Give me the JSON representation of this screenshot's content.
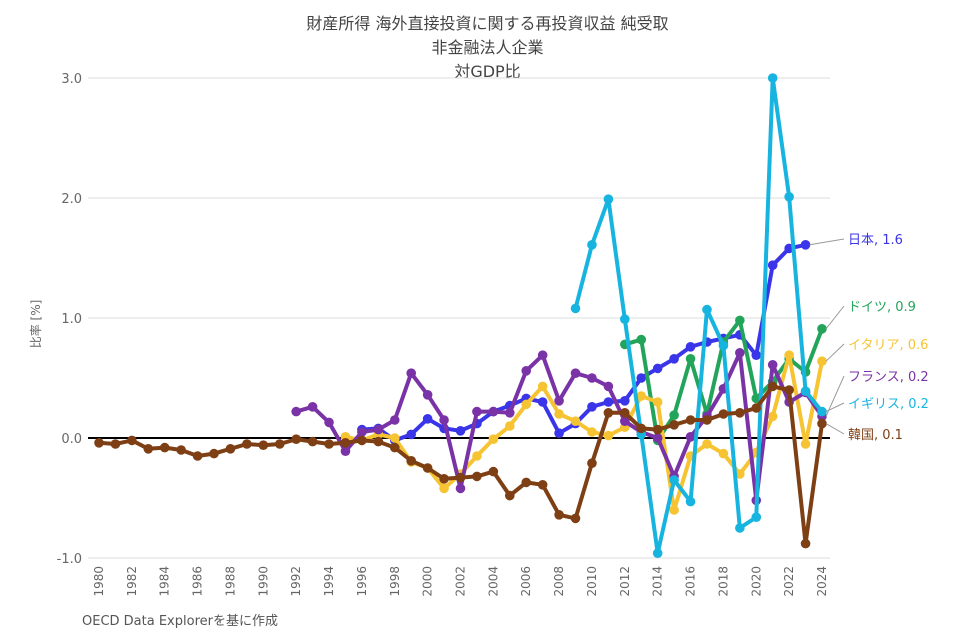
{
  "chart_data": {
    "type": "line",
    "title": [
      "財産所得 海外直接投資に関する再投資収益 純受取",
      "非金融法人企業",
      "対GDP比"
    ],
    "ylabel": "比率 [%]",
    "xlabel": "",
    "ylim": [
      -1.0,
      3.0
    ],
    "yticks": [
      "-1.0",
      "0.0",
      "1.0",
      "2.0",
      "3.0"
    ],
    "xlim": [
      1980,
      2024
    ],
    "xticks": [
      "1980",
      "1982",
      "1984",
      "1986",
      "1988",
      "1990",
      "1992",
      "1994",
      "1996",
      "1998",
      "2000",
      "2002",
      "2004",
      "2006",
      "2008",
      "2010",
      "2012",
      "2014",
      "2016",
      "2018",
      "2020",
      "2022",
      "2024"
    ],
    "grid": true,
    "source": "OECD Data Explorerを基に作成",
    "series": [
      {
        "name": "日本",
        "label": "日本, 1.6",
        "color": "#3a35e8",
        "x": [
          1996,
          1997,
          1998,
          1999,
          2000,
          2001,
          2002,
          2003,
          2004,
          2005,
          2006,
          2007,
          2008,
          2009,
          2010,
          2011,
          2012,
          2013,
          2014,
          2015,
          2016,
          2017,
          2018,
          2019,
          2020,
          2021,
          2022,
          2023
        ],
        "y": [
          0.07,
          0.08,
          -0.02,
          0.03,
          0.16,
          0.08,
          0.06,
          0.12,
          0.22,
          0.27,
          0.33,
          0.3,
          0.04,
          0.12,
          0.26,
          0.3,
          0.31,
          0.5,
          0.58,
          0.66,
          0.76,
          0.8,
          0.83,
          0.86,
          0.69,
          1.44,
          1.58,
          1.61
        ]
      },
      {
        "name": "ドイツ",
        "label": "ドイツ, 0.9",
        "color": "#22a55a",
        "x": [
          2012,
          2013,
          2014,
          2015,
          2016,
          2017,
          2018,
          2019,
          2020,
          2021,
          2022,
          2023,
          2024
        ],
        "y": [
          0.78,
          0.82,
          -0.02,
          0.19,
          0.66,
          0.2,
          0.8,
          0.98,
          0.33,
          0.47,
          0.66,
          0.55,
          0.91
        ]
      },
      {
        "name": "イタリア",
        "label": "イタリア, 0.6",
        "color": "#f6c432",
        "x": [
          1995,
          1996,
          1997,
          1998,
          1999,
          2000,
          2001,
          2002,
          2003,
          2004,
          2005,
          2006,
          2007,
          2008,
          2009,
          2010,
          2011,
          2012,
          2013,
          2014,
          2015,
          2016,
          2017,
          2018,
          2019,
          2020,
          2021,
          2022,
          2023,
          2024
        ],
        "y": [
          0.01,
          -0.02,
          0.03,
          0.0,
          -0.2,
          -0.25,
          -0.42,
          -0.3,
          -0.15,
          -0.01,
          0.1,
          0.28,
          0.43,
          0.2,
          0.14,
          0.05,
          0.02,
          0.09,
          0.35,
          0.3,
          -0.6,
          -0.15,
          -0.05,
          -0.13,
          -0.3,
          -0.12,
          0.18,
          0.69,
          -0.05,
          0.64
        ]
      },
      {
        "name": "フランス",
        "label": "フランス, 0.2",
        "color": "#7a33a6",
        "x": [
          1992,
          1993,
          1994,
          1995,
          1996,
          1997,
          1998,
          1999,
          2000,
          2001,
          2002,
          2003,
          2004,
          2005,
          2006,
          2007,
          2008,
          2009,
          2010,
          2011,
          2012,
          2013,
          2014,
          2015,
          2016,
          2017,
          2018,
          2019,
          2020,
          2021,
          2022,
          2023,
          2024
        ],
        "y": [
          0.22,
          0.26,
          0.13,
          -0.11,
          0.05,
          0.07,
          0.15,
          0.54,
          0.36,
          0.15,
          -0.42,
          0.22,
          0.22,
          0.21,
          0.56,
          0.69,
          0.31,
          0.54,
          0.5,
          0.43,
          0.14,
          0.05,
          0.0,
          -0.32,
          0.01,
          0.18,
          0.41,
          0.71,
          -0.52,
          0.61,
          0.3,
          0.38,
          0.18
        ]
      },
      {
        "name": "イギリス",
        "label": "イギリス, 0.2",
        "color": "#18b4e0",
        "x": [
          2009,
          2010,
          2011,
          2012,
          2013,
          2014,
          2015,
          2016,
          2017,
          2018,
          2019,
          2020,
          2021,
          2022,
          2023,
          2024
        ],
        "y": [
          1.08,
          1.61,
          1.99,
          0.99,
          0.03,
          -0.96,
          -0.35,
          -0.53,
          1.07,
          0.77,
          -0.75,
          -0.66,
          3.0,
          2.01,
          0.39,
          0.22
        ]
      },
      {
        "name": "韓国",
        "label": "韓国, 0.1",
        "color": "#7e3f15",
        "x": [
          1980,
          1981,
          1982,
          1983,
          1984,
          1985,
          1986,
          1987,
          1988,
          1989,
          1990,
          1991,
          1992,
          1993,
          1994,
          1995,
          1996,
          1997,
          1998,
          1999,
          2000,
          2001,
          2002,
          2003,
          2004,
          2005,
          2006,
          2007,
          2008,
          2009,
          2010,
          2011,
          2012,
          2013,
          2014,
          2015,
          2016,
          2017,
          2018,
          2019,
          2020,
          2021,
          2022,
          2023,
          2024
        ],
        "y": [
          -0.04,
          -0.05,
          -0.02,
          -0.09,
          -0.08,
          -0.1,
          -0.15,
          -0.13,
          -0.09,
          -0.05,
          -0.06,
          -0.05,
          -0.01,
          -0.03,
          -0.05,
          -0.04,
          -0.02,
          -0.03,
          -0.08,
          -0.19,
          -0.25,
          -0.34,
          -0.33,
          -0.32,
          -0.28,
          -0.48,
          -0.37,
          -0.39,
          -0.64,
          -0.67,
          -0.21,
          0.21,
          0.21,
          0.08,
          0.07,
          0.11,
          0.15,
          0.15,
          0.2,
          0.21,
          0.25,
          0.43,
          0.4,
          -0.88,
          0.12
        ]
      }
    ]
  }
}
